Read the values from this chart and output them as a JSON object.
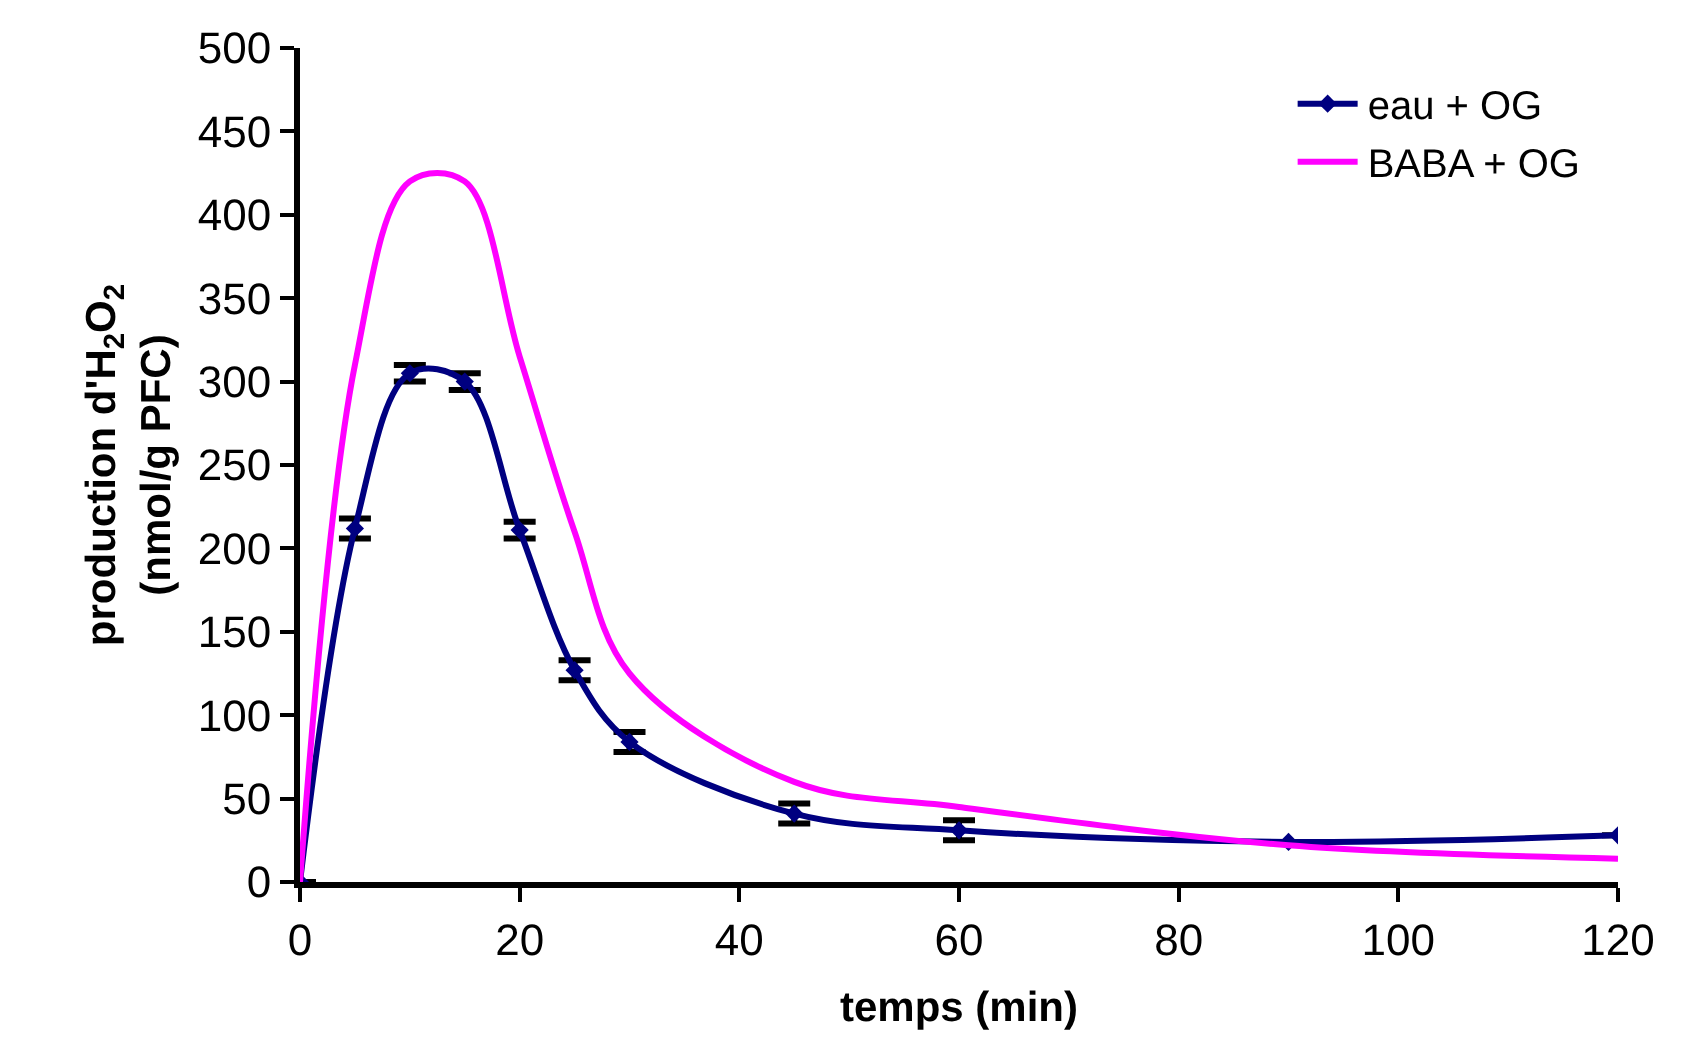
{
  "chart_data": {
    "type": "line",
    "xlabel": "temps (min)",
    "ylabel": "production d'H$_{2}$O$_{2}$\n(nmol/g PFC)",
    "xlim": [
      0,
      120
    ],
    "xticks": [
      0,
      20,
      40,
      60,
      80,
      100,
      120
    ],
    "ylim": [
      0,
      500
    ],
    "yticks": [
      0,
      50,
      100,
      150,
      200,
      250,
      300,
      350,
      400,
      450,
      500
    ],
    "legend": "top right",
    "series": [
      {
        "name": "eau + OG",
        "color": "#000080",
        "marker": "diamond",
        "x": [
          0,
          5,
          10,
          15,
          20,
          25,
          30,
          45,
          60,
          90,
          120
        ],
        "values": [
          0,
          212,
          305,
          300,
          211,
          127,
          84,
          41,
          31,
          24,
          28
        ],
        "errors": [
          null,
          6,
          5,
          5,
          5,
          6,
          6,
          6,
          6,
          null,
          null
        ]
      },
      {
        "name": "BABA + OG",
        "color": "#ff00ff",
        "marker": "none",
        "x": [
          0,
          5,
          10,
          15,
          20,
          25,
          30,
          45,
          60,
          90,
          120
        ],
        "values": [
          0,
          310,
          420,
          420,
          315,
          210,
          125,
          60,
          45,
          22,
          14
        ]
      }
    ]
  }
}
